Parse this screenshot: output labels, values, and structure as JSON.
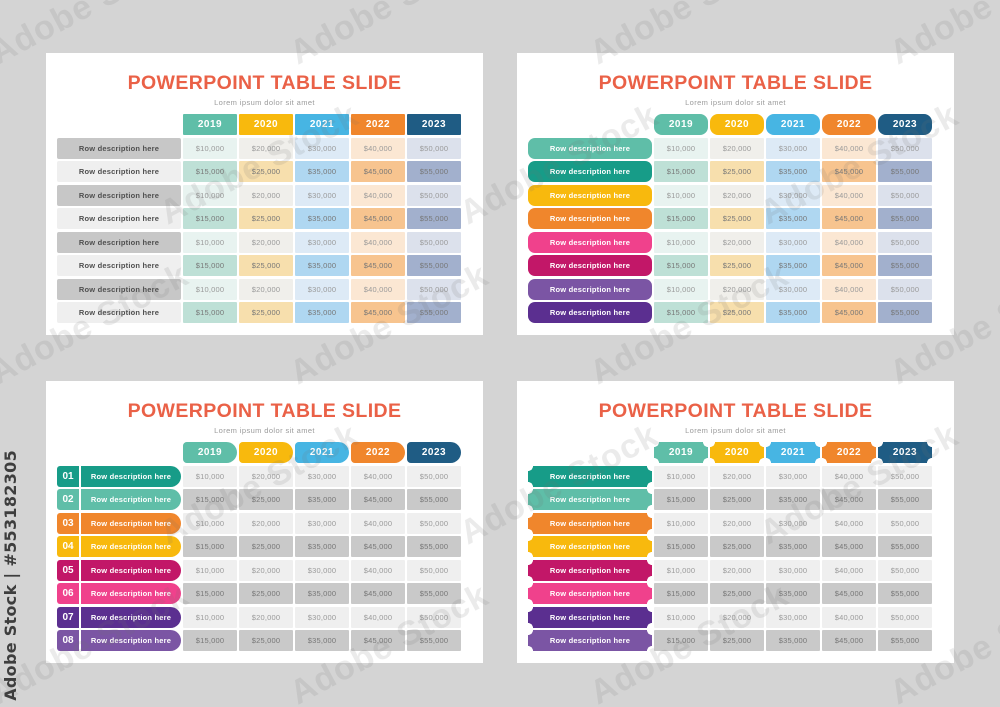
{
  "watermark": {
    "diagonal_text": "Adobe Stock",
    "side_text": "Adobe Stock | #553182305"
  },
  "shared": {
    "title": "POWERPOINT TABLE SLIDE",
    "subtitle": "Lorem ipsum dolor sit amet",
    "years": [
      "2019",
      "2020",
      "2021",
      "2022",
      "2023"
    ],
    "row_label": "Row description here",
    "row_count": 8,
    "values_odd_rows": [
      "$10,000",
      "$20,000",
      "$30,000",
      "$40,000",
      "$50,000"
    ],
    "values_even_rows": [
      "$15,000",
      "$25,000",
      "$35,000",
      "$45,000",
      "$55,000"
    ]
  },
  "palette": {
    "page_background": "#D4D4D4",
    "slide_background": "#FFFFFF",
    "title_color": "#EA6147",
    "subtitle_color": "#9B9B9B",
    "year_colors": [
      "#5FBEA8",
      "#F8B90D",
      "#47B5E3",
      "#F0862C",
      "#1F5C84"
    ],
    "cell_tints_light": [
      "#E8F3F0",
      "#F0EFEB",
      "#DDEAF6",
      "#FBE7D3",
      "#DCE1EC"
    ],
    "cell_tints_medium": [
      "#BEE0D6",
      "#F7DFAD",
      "#AFD7F1",
      "#F7C48F",
      "#A2B0CD"
    ],
    "row_colors_light_first": [
      "#5FBEA8",
      "#179C88",
      "#F8B90D",
      "#F0862C",
      "#F0418C",
      "#C21768",
      "#7B55A4",
      "#5B2F90"
    ],
    "row_colors_dark_first": [
      "#179C88",
      "#5FBEA8",
      "#F0862C",
      "#F8B90D",
      "#C21768",
      "#F0418C",
      "#5B2F90",
      "#7B55A4"
    ],
    "gray_label_odd": "#C7C7C7",
    "gray_label_even": "#EFEFEF",
    "gray_label_text": "#4F4F4F",
    "gray_cell_odd": "#EFEFEF",
    "gray_cell_even": "#C9C9C9",
    "value_text_on_light": "#9A9A9A",
    "value_text_on_medium": "#777777"
  },
  "slides": [
    {
      "key": "top-left",
      "header_shape": "rect",
      "label_style": "gray",
      "cell_style": "tinted"
    },
    {
      "key": "top-right",
      "header_shape": "rounded",
      "label_style": "colored-rounded",
      "row_palette": "row_colors_light_first",
      "cell_style": "tinted"
    },
    {
      "key": "bottom-left",
      "header_shape": "tag",
      "label_style": "colored-numbered",
      "row_palette": "row_colors_dark_first",
      "cell_style": "gray",
      "numbers": [
        "01",
        "02",
        "03",
        "04",
        "05",
        "06",
        "07",
        "08"
      ]
    },
    {
      "key": "bottom-right",
      "header_shape": "ticket",
      "label_style": "colored-ticket",
      "row_palette": "row_colors_dark_first",
      "cell_style": "gray"
    }
  ]
}
